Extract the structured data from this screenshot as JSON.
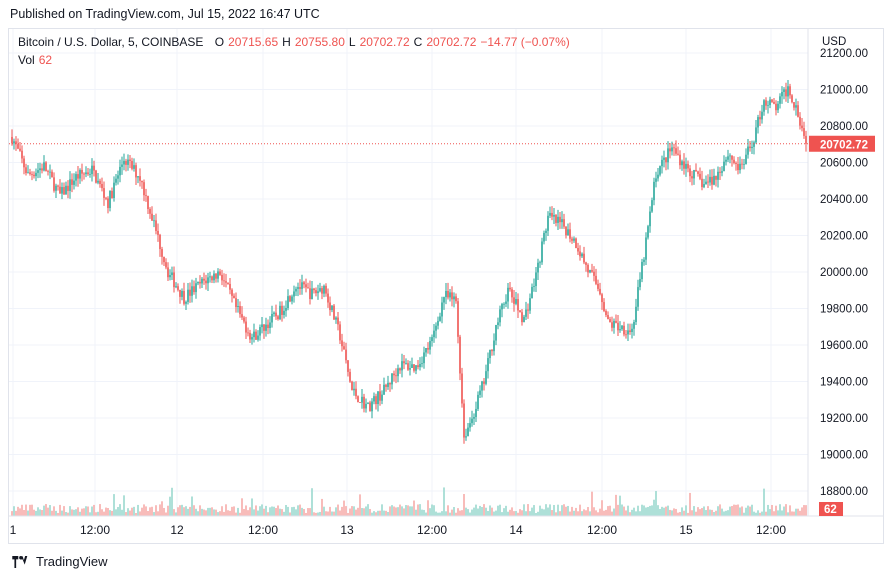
{
  "header": {
    "published": "Published on TradingView.com, Jul 15, 2022 16:47 UTC"
  },
  "legend": {
    "symbol": "Bitcoin / U.S. Dollar, 5, COINBASE",
    "open_label": "O",
    "open": "20715.65",
    "high_label": "H",
    "high": "20755.80",
    "low_label": "L",
    "low": "20702.72",
    "close_label": "C",
    "close": "20702.72",
    "change": "−14.77 (−0.07%)",
    "vol_label": "Vol",
    "vol": "62"
  },
  "footer": {
    "brand": "TradingView"
  },
  "colors": {
    "up": "#26a69a",
    "down": "#ef5350",
    "up_vol": "#a6dcd4",
    "down_vol": "#f7b5b3",
    "grid": "#f0f3fa"
  },
  "chart_data": {
    "type": "candlestick",
    "currency": "USD",
    "y_ticks": [
      18800,
      19000,
      19200,
      19400,
      19600,
      19800,
      20000,
      20200,
      20400,
      20600,
      20800,
      21000,
      21200
    ],
    "y_tick_labels": [
      "18800.00",
      "19000.00",
      "19200.00",
      "19400.00",
      "19600.00",
      "19800.00",
      "20000.00",
      "20200.00",
      "20400.00",
      "20600.00",
      "20800.00",
      "21000.00",
      "21200.00"
    ],
    "x_tick_labels": [
      "1",
      "12:00",
      "12",
      "12:00",
      "13",
      "12:00",
      "14",
      "12:00",
      "15",
      "12:00"
    ],
    "last_price": "20702.72",
    "last_volume": "62",
    "price_path": [
      [
        0,
        20740
      ],
      [
        8,
        20530
      ],
      [
        16,
        20580
      ],
      [
        24,
        20420
      ],
      [
        32,
        20520
      ],
      [
        40,
        20560
      ],
      [
        48,
        20380
      ],
      [
        56,
        20620
      ],
      [
        64,
        20520
      ],
      [
        70,
        20300
      ],
      [
        78,
        20000
      ],
      [
        86,
        19860
      ],
      [
        96,
        19950
      ],
      [
        104,
        20000
      ],
      [
        112,
        19800
      ],
      [
        120,
        19640
      ],
      [
        128,
        19720
      ],
      [
        134,
        19780
      ],
      [
        142,
        19930
      ],
      [
        150,
        19880
      ],
      [
        156,
        19920
      ],
      [
        164,
        19650
      ],
      [
        170,
        19350
      ],
      [
        178,
        19260
      ],
      [
        186,
        19350
      ],
      [
        194,
        19490
      ],
      [
        202,
        19480
      ],
      [
        210,
        19620
      ],
      [
        216,
        19870
      ],
      [
        222,
        19840
      ],
      [
        226,
        19100
      ],
      [
        230,
        19200
      ],
      [
        236,
        19400
      ],
      [
        242,
        19700
      ],
      [
        248,
        19900
      ],
      [
        256,
        19740
      ],
      [
        262,
        19980
      ],
      [
        268,
        20300
      ],
      [
        276,
        20250
      ],
      [
        282,
        20160
      ],
      [
        288,
        20010
      ],
      [
        294,
        19900
      ],
      [
        298,
        19720
      ],
      [
        304,
        19700
      ],
      [
        310,
        19680
      ],
      [
        316,
        20090
      ],
      [
        322,
        20540
      ],
      [
        330,
        20680
      ],
      [
        338,
        20560
      ],
      [
        346,
        20480
      ],
      [
        352,
        20520
      ],
      [
        358,
        20650
      ],
      [
        364,
        20560
      ],
      [
        370,
        20700
      ],
      [
        376,
        20940
      ],
      [
        382,
        20900
      ],
      [
        388,
        21010
      ],
      [
        393,
        20880
      ],
      [
        397,
        20702.72
      ]
    ]
  }
}
